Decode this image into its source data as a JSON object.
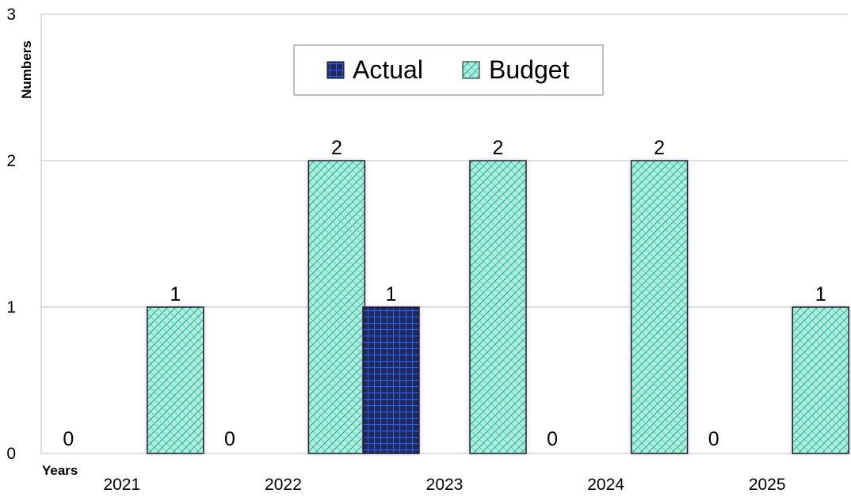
{
  "chart_data": {
    "type": "bar",
    "categories": [
      "2021",
      "2022",
      "2023",
      "2024",
      "2025"
    ],
    "series": [
      {
        "name": "Actual",
        "values": [
          0,
          0,
          1,
          0,
          0
        ],
        "color": "#1f2a56",
        "grid_color": "#3b5bdb"
      },
      {
        "name": "Budget",
        "values": [
          1,
          2,
          2,
          2,
          1
        ],
        "color": "#aaf0dc",
        "grid_color": "#2aa39a"
      }
    ],
    "title": "",
    "xlabel": "Years",
    "ylabel": "Numbers",
    "ylim": [
      0,
      3
    ],
    "yticks": [
      "0",
      "1",
      "2",
      "3"
    ],
    "grid": true,
    "legend_position": "top-center",
    "data_labels": true
  }
}
